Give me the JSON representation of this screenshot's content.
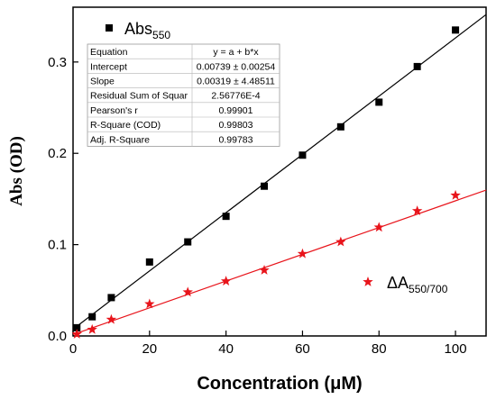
{
  "chart_data": {
    "type": "scatter",
    "xlabel_text": "Concentration (",
    "xlabel_unit": "μM",
    "xlabel_close": ")",
    "ylabel": "Abs (OD)",
    "xlim": [
      0,
      108
    ],
    "ylim": [
      0,
      0.36
    ],
    "x_ticks": [
      0,
      20,
      40,
      60,
      80,
      100
    ],
    "y_ticks": [
      0.0,
      0.1,
      0.2,
      0.3
    ],
    "y_tick_labels": [
      "0.0",
      "0.1",
      "0.2",
      "0.3"
    ],
    "grid": false,
    "legend": [
      {
        "base": "Abs",
        "sub": "550",
        "marker": "square",
        "color": "#000000",
        "placement": "top-left"
      },
      {
        "base": "ΔA",
        "sub": "550/700",
        "marker": "star",
        "color": "#e8141b",
        "placement": "bottom-right"
      }
    ],
    "series": [
      {
        "name": "Abs550",
        "marker": "square",
        "color": "#000000",
        "x": [
          1,
          5,
          10,
          20,
          30,
          40,
          50,
          60,
          70,
          80,
          90,
          100
        ],
        "y": [
          0.009,
          0.021,
          0.042,
          0.081,
          0.103,
          0.131,
          0.164,
          0.198,
          0.229,
          0.256,
          0.295,
          0.335
        ],
        "fit": {
          "intercept": 0.00739,
          "slope": 0.00319,
          "x_range": [
            0,
            108
          ],
          "color": "#000000"
        }
      },
      {
        "name": "ΔA550/700",
        "marker": "star",
        "color": "#e8141b",
        "x": [
          1,
          5,
          10,
          20,
          30,
          40,
          50,
          60,
          70,
          80,
          90,
          100
        ],
        "y": [
          0.002,
          0.007,
          0.018,
          0.035,
          0.048,
          0.06,
          0.072,
          0.09,
          0.103,
          0.119,
          0.137,
          0.154
        ],
        "fit": {
          "intercept": 0.0015,
          "slope": 0.001465,
          "x_range": [
            0,
            108
          ],
          "color": "#e8141b"
        }
      }
    ],
    "stats_table": {
      "rows": [
        [
          "Equation",
          "y = a + b*x"
        ],
        [
          "Intercept",
          "0.00739 ± 0.00254"
        ],
        [
          "Slope",
          "0.00319 ± 4.48511"
        ],
        [
          "Residual Sum of Squar",
          "2.56776E-4"
        ],
        [
          "Pearson's r",
          "0.99901"
        ],
        [
          "R-Square (COD)",
          "0.99803"
        ],
        [
          "Adj. R-Square",
          "0.99783"
        ]
      ]
    }
  }
}
